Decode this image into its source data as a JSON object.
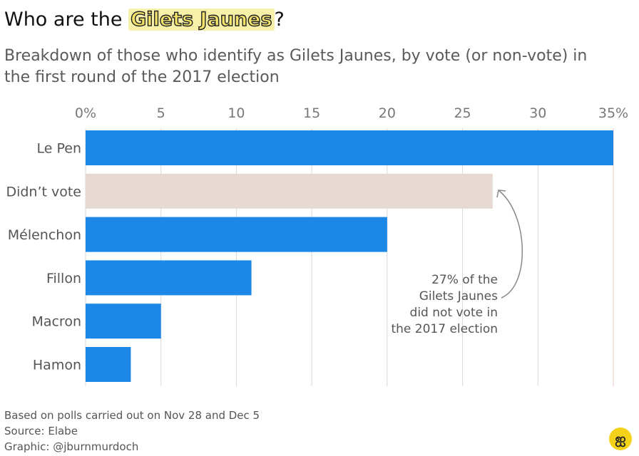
{
  "title": {
    "prefix": "Who are the ",
    "highlight": "Gilets Jaunes",
    "suffix": "?"
  },
  "subtitle": "Breakdown of those who identify as Gilets Jaunes, by vote (or non-vote) in the first round of the 2017 election",
  "annotation": [
    "27% of the",
    "Gilets Jaunes",
    "did not vote in",
    "the 2017 election"
  ],
  "footer": {
    "line1": "Based on polls carried out on Nov 28 and Dec 5",
    "line2": "Source: Elabe",
    "line3": "Graphic: @jburnmurdoch"
  },
  "logo_icon": "ft-logo-icon",
  "colors": {
    "bar": "#1d87e8",
    "highlight_bar": "#e6d9d1",
    "grid": "#d9d9d9",
    "max_gridline": "#f2c6c6",
    "axis_text": "#777777",
    "label_text": "#555555"
  },
  "chart_data": {
    "type": "bar",
    "orientation": "horizontal",
    "categories": [
      "Le Pen",
      "Didn’t vote",
      "Mélenchon",
      "Fillon",
      "Macron",
      "Hamon"
    ],
    "values": [
      35,
      27,
      20,
      11,
      5,
      3
    ],
    "highlight_category": "Didn’t vote",
    "xticks": [
      0,
      5,
      10,
      15,
      20,
      25,
      30,
      35
    ],
    "xtick_labels": [
      "0%",
      "5",
      "10",
      "15",
      "20",
      "25",
      "30",
      "35%"
    ],
    "xlim": [
      0,
      35
    ],
    "grid": true,
    "axis_position": "top"
  }
}
